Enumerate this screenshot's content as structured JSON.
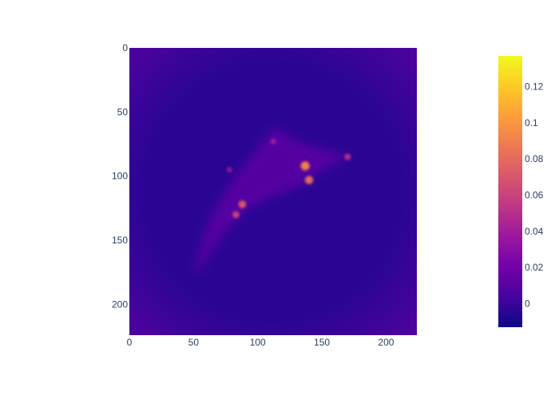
{
  "chart_data": {
    "type": "heatmap",
    "title": "",
    "xlabel": "",
    "ylabel": "",
    "image_size": [
      224,
      224
    ],
    "x_ticks": [
      0,
      50,
      100,
      150,
      200
    ],
    "y_ticks": [
      0,
      50,
      100,
      150,
      200
    ],
    "y_axis_reversed": true,
    "colorbar": {
      "range": [
        -0.013,
        0.137
      ],
      "ticks": [
        0,
        0.02,
        0.04,
        0.06,
        0.08,
        0.1,
        0.12
      ],
      "tick_labels": [
        "0",
        "0.02",
        "0.04",
        "0.06",
        "0.08",
        "0.1",
        "0.12"
      ],
      "colorscale": "Plasma",
      "colors": [
        "#0d0887",
        "#46039f",
        "#7201a8",
        "#9c179e",
        "#bd3786",
        "#d8576b",
        "#ed7953",
        "#fb9f3a",
        "#fdca26",
        "#f0f921"
      ]
    },
    "description": "Saliency-style heatmap of a bird silhouette (diagonal from lower-left to upper-right) with brightest values near the head around x~135-170, y~85-105",
    "background_value": 0.0,
    "hotspots": [
      {
        "x": 137,
        "y": 92,
        "value": 0.09
      },
      {
        "x": 140,
        "y": 103,
        "value": 0.08
      },
      {
        "x": 88,
        "y": 122,
        "value": 0.07
      },
      {
        "x": 83,
        "y": 130,
        "value": 0.06
      },
      {
        "x": 170,
        "y": 85,
        "value": 0.05
      },
      {
        "x": 112,
        "y": 73,
        "value": 0.04
      },
      {
        "x": 78,
        "y": 95,
        "value": 0.035
      }
    ]
  }
}
